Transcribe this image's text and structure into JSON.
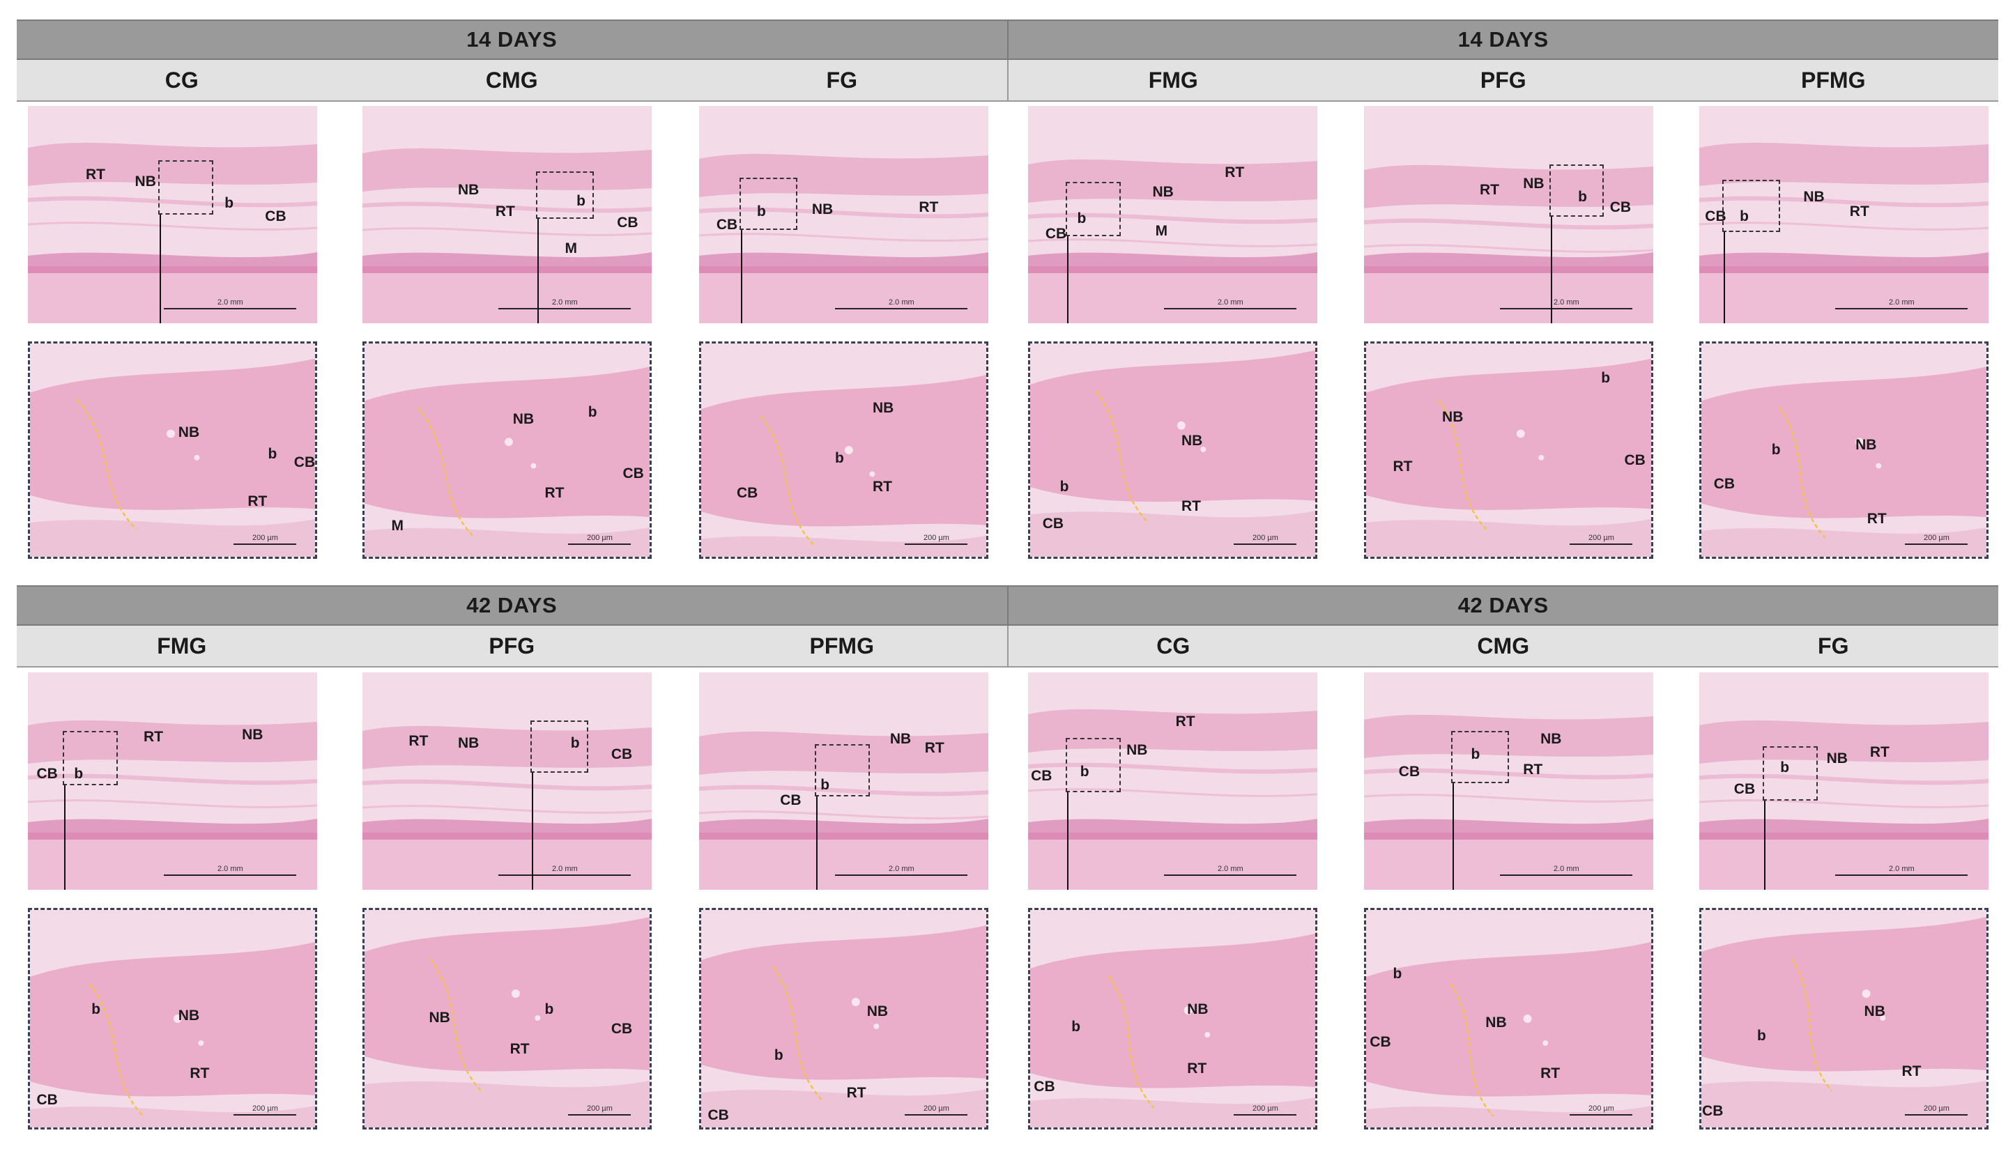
{
  "sections": [
    {
      "days_left": "14 DAYS",
      "days_right": "14 DAYS",
      "groups": [
        "CG",
        "CMG",
        "FG",
        "FMG",
        "PFG",
        "PFMG"
      ]
    },
    {
      "days_left": "42 DAYS",
      "days_right": "42 DAYS",
      "groups": [
        "FMG",
        "PFG",
        "PFMG",
        "CG",
        "CMG",
        "FG"
      ]
    }
  ],
  "scale_labels": {
    "overview": "2.0 mm",
    "detail": "200 µm"
  },
  "tissue_labels": {
    "RT": "RT",
    "NB": "NB",
    "CB": "CB",
    "b": "b",
    "M": "M"
  },
  "colors": {
    "stain_light": "#f3dbe8",
    "stain_mid": "#e7a6c6",
    "stain_dark": "#c94f93",
    "boundary": "#f2c440"
  }
}
